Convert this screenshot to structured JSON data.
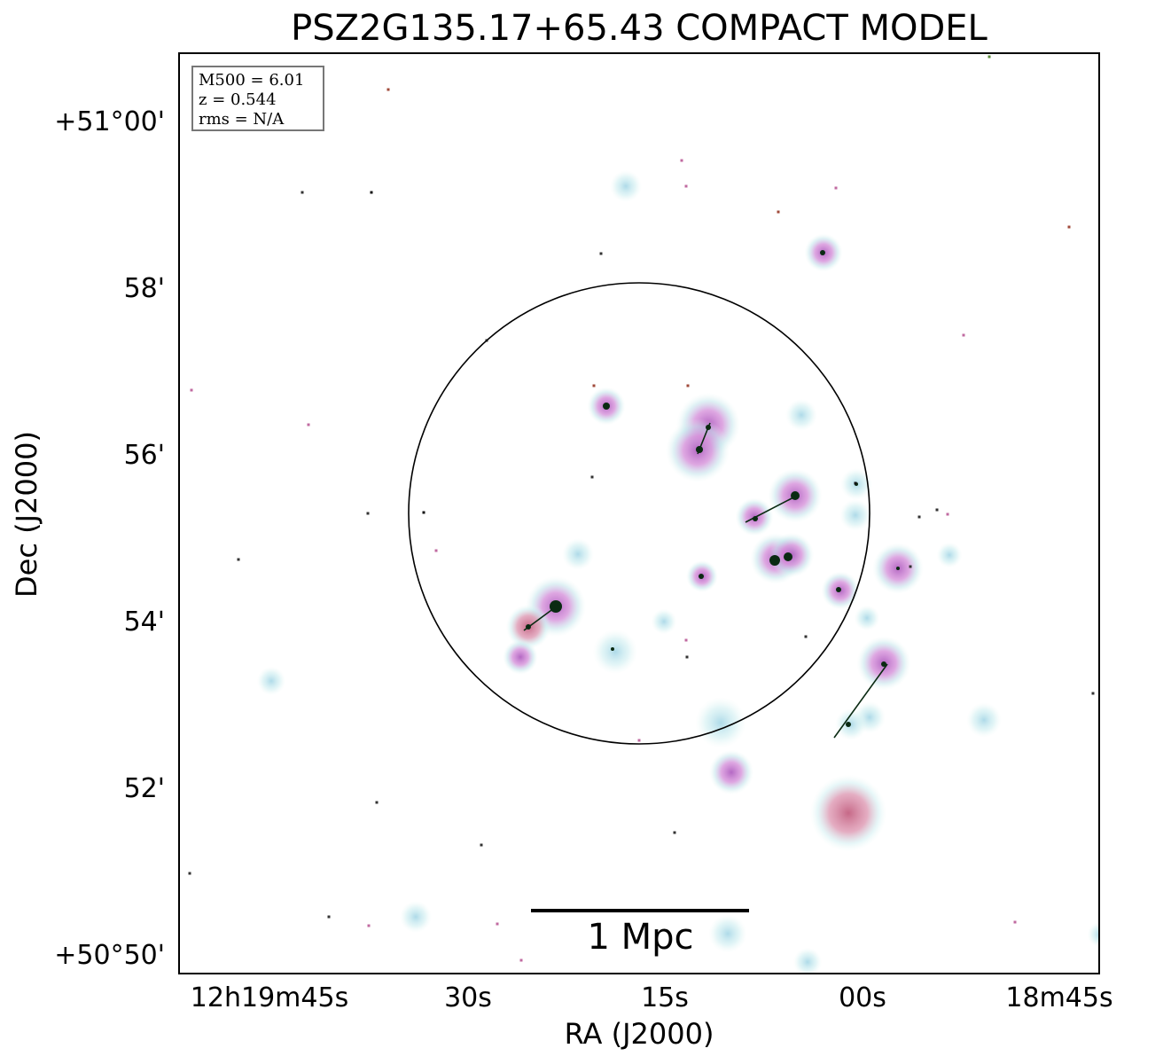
{
  "title": "PSZ2G135.17+65.43 COMPACT MODEL",
  "legend": {
    "m500": "M500 = 6.01",
    "z": "z = 0.544",
    "rms": "rms = N/A"
  },
  "axes": {
    "xlabel": "RA (J2000)",
    "ylabel": "Dec (J2000)",
    "xticks": [
      "12h19m45s",
      "30s",
      "15s",
      "00s",
      "18m45s"
    ],
    "yticks": [
      "+51°00'",
      "58'",
      "56'",
      "54'",
      "52'",
      "+50°50'"
    ]
  },
  "scalebar": {
    "label": "1 Mpc"
  },
  "colors": {
    "source_core": "#0a2a12",
    "source_halo": "#c9a0dc",
    "source_glow": "#bfe8ec",
    "circle": "#000000"
  }
}
